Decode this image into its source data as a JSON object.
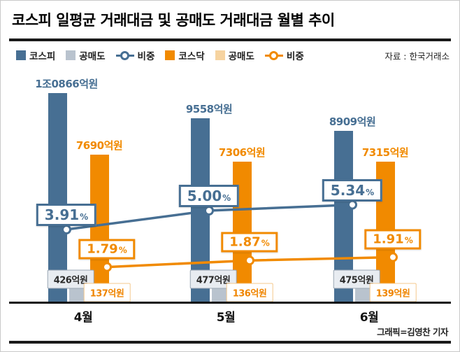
{
  "header": {
    "title": "코스피 일평균 거래대금 및 공매도 거래대금 월별 추이",
    "source": "자료 : 한국거래소"
  },
  "legend": {
    "items": [
      {
        "key": "kospi",
        "label": "코스피",
        "type": "square",
        "color": "#476f93"
      },
      {
        "key": "kospi-short",
        "label": "공매도",
        "type": "square",
        "color": "#b9c3ce"
      },
      {
        "key": "kospi-ratio",
        "label": "비중",
        "type": "line",
        "color": "#476f93"
      },
      {
        "key": "kosdaq",
        "label": "코스닥",
        "type": "square",
        "color": "#f18a00"
      },
      {
        "key": "kosdaq-short",
        "label": "공매도",
        "type": "square",
        "color": "#f6d3a0"
      },
      {
        "key": "kosdaq-ratio",
        "label": "비중",
        "type": "line",
        "color": "#f18a00"
      }
    ]
  },
  "chart_data": {
    "type": "bar",
    "subtype": "grouped bars with two ratio lines",
    "unit": "억원",
    "categories": [
      "4월",
      "5월",
      "6월"
    ],
    "series": [
      {
        "key": "kospi",
        "name": "코스피",
        "kind": "bar",
        "values": [
          10866,
          9558,
          8909
        ],
        "labels": [
          "1조0866억원",
          "9558억원",
          "8909억원"
        ],
        "color": "#476f93"
      },
      {
        "key": "kospi-short",
        "name": "코스피 공매도",
        "kind": "bar",
        "values": [
          426,
          477,
          475
        ],
        "labels": [
          "426억원",
          "477억원",
          "475억원"
        ],
        "color": "#b9c3ce"
      },
      {
        "key": "kosdaq",
        "name": "코스닥",
        "kind": "bar",
        "values": [
          7690,
          7306,
          7315
        ],
        "labels": [
          "7690억원",
          "7306억원",
          "7315억원"
        ],
        "color": "#f18a00"
      },
      {
        "key": "kosdaq-short",
        "name": "코스닥 공매도",
        "kind": "bar",
        "values": [
          137,
          136,
          139
        ],
        "labels": [
          "137억원",
          "136억원",
          "139억원"
        ],
        "color": "#f6d3a0"
      },
      {
        "key": "kospi-ratio",
        "name": "코스피 공매도 비중",
        "kind": "line",
        "values": [
          3.91,
          5.0,
          5.34
        ],
        "labels": [
          "3.91%",
          "5.00%",
          "5.34%"
        ],
        "color": "#476f93"
      },
      {
        "key": "kosdaq-ratio",
        "name": "코스닥 공매도 비중",
        "kind": "line",
        "values": [
          1.79,
          1.87,
          1.91
        ],
        "labels": [
          "1.79%",
          "1.87%",
          "1.91%"
        ],
        "color": "#f18a00"
      }
    ],
    "legend_position": "top",
    "y_axis_ticks_visible": false,
    "grid": false
  },
  "footer": {
    "credit": "그래픽=김영찬 기자"
  }
}
